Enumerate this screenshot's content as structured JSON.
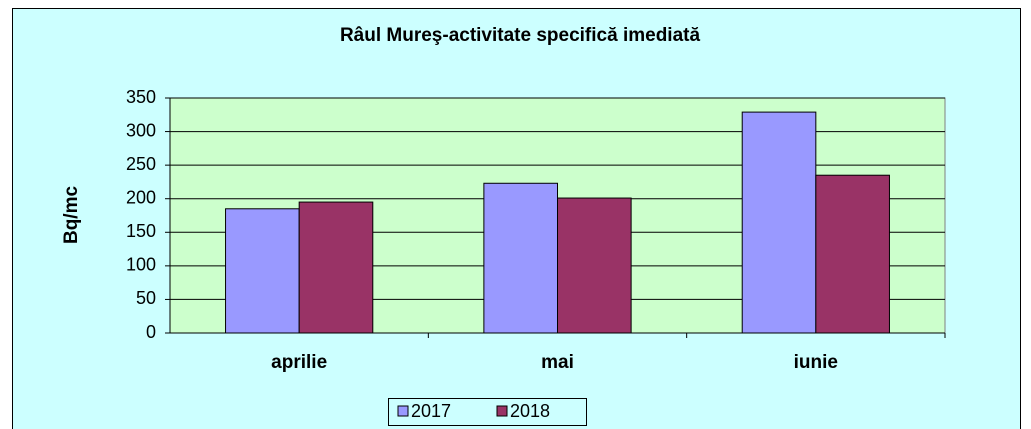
{
  "chart_data": {
    "type": "bar",
    "title": "Râul Mureş-activitate specifică imediată",
    "y_label": "Bq/mc",
    "categories": [
      "aprilie",
      "mai",
      "iunie"
    ],
    "series": [
      {
        "name": "2017",
        "color": "#9999ff",
        "values": [
          185,
          223,
          329
        ]
      },
      {
        "name": "2018",
        "color": "#993366",
        "values": [
          195,
          201,
          235
        ]
      }
    ],
    "ylim": [
      0,
      350
    ],
    "yticks": [
      0,
      50,
      100,
      150,
      200,
      250,
      300,
      350
    ],
    "grid": true,
    "legend": "bottom"
  }
}
